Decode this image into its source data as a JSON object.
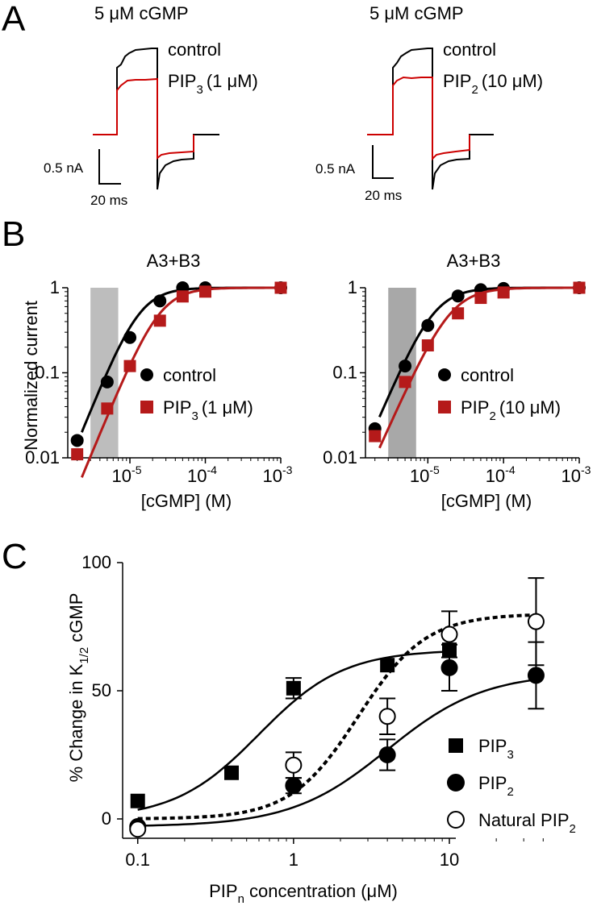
{
  "panel_letters": {
    "a": "A",
    "b": "B",
    "c": "C"
  },
  "panel_a": {
    "left": {
      "title": "5 μM cGMP",
      "label_control": "control",
      "label_drug": {
        "base": "PIP",
        "sub": "3",
        "conc": "(1 μM)"
      },
      "scale_current": "0.5 nA",
      "scale_time": "20 ms"
    },
    "right": {
      "title": "5 μM cGMP",
      "label_control": "control",
      "label_drug": {
        "base": "PIP",
        "sub": "2",
        "conc": "(10 μM)"
      },
      "scale_current": "0.5 nA",
      "scale_time": "20 ms"
    },
    "colors": {
      "control": "#000000",
      "drug": "#cc0000"
    }
  },
  "chart_data": [
    {
      "panel": "B-left",
      "type": "scatter",
      "title": "A3+B3",
      "ylabel": "Normalized current",
      "xlabel": "[cGMP] (M)",
      "xscale": "log",
      "yscale": "log",
      "xlim": [
        1.5e-06,
        0.001
      ],
      "ylim": [
        0.01,
        1
      ],
      "x_ticks": [
        {
          "base": "10",
          "exp": "-5",
          "v": 1e-05
        },
        {
          "base": "10",
          "exp": "-4",
          "v": 0.0001
        },
        {
          "base": "10",
          "exp": "-3",
          "v": 0.001
        }
      ],
      "y_ticks": [
        {
          "label": "1",
          "v": 1
        },
        {
          "label": "0.1",
          "v": 0.1
        },
        {
          "label": "0.01",
          "v": 0.01
        }
      ],
      "shaded_band": [
        3e-06,
        7e-06
      ],
      "series": [
        {
          "name": "control",
          "legend_base": "control",
          "color": "#000000",
          "marker": "circle",
          "x": [
            2e-06,
            5e-06,
            1e-05,
            2.5e-05,
            5e-05,
            0.0001,
            0.001
          ],
          "y": [
            0.016,
            0.078,
            0.26,
            0.7,
            1.0,
            1.0,
            1.0
          ],
          "fit": {
            "k": 1.35e-05,
            "n": 2.2
          }
        },
        {
          "name": "PIP3 (1 μM)",
          "legend_base": "PIP",
          "legend_sub": "3",
          "legend_conc": "(1 μM)",
          "color": "#b51a1a",
          "marker": "square",
          "x": [
            2e-06,
            5e-06,
            1e-05,
            2.5e-05,
            5e-05,
            0.0001,
            0.001
          ],
          "y": [
            0.011,
            0.038,
            0.12,
            0.41,
            0.79,
            0.9,
            1.0
          ],
          "fit": {
            "k": 2.5e-05,
            "n": 2.15
          }
        }
      ]
    },
    {
      "panel": "B-right",
      "type": "scatter",
      "title": "A3+B3",
      "ylabel": "",
      "xlabel": "[cGMP] (M)",
      "xscale": "log",
      "yscale": "log",
      "xlim": [
        1.5e-06,
        0.001
      ],
      "ylim": [
        0.01,
        1
      ],
      "x_ticks": [
        {
          "base": "10",
          "exp": "-5",
          "v": 1e-05
        },
        {
          "base": "10",
          "exp": "-4",
          "v": 0.0001
        },
        {
          "base": "10",
          "exp": "-3",
          "v": 0.001
        }
      ],
      "y_ticks": [
        {
          "label": "1",
          "v": 1
        },
        {
          "label": "0.1",
          "v": 0.1
        },
        {
          "label": "0.01",
          "v": 0.01
        }
      ],
      "shaded_band": [
        3e-06,
        7e-06
      ],
      "series": [
        {
          "name": "control",
          "legend_base": "control",
          "color": "#000000",
          "marker": "circle",
          "x": [
            2e-06,
            5e-06,
            1e-05,
            2.5e-05,
            5e-05,
            0.0001,
            0.001
          ],
          "y": [
            0.022,
            0.12,
            0.36,
            0.8,
            0.95,
            0.98,
            1.0
          ],
          "fit": {
            "k": 1.2e-05,
            "n": 2.1
          }
        },
        {
          "name": "PIP2 (10 μM)",
          "legend_base": "PIP",
          "legend_sub": "2",
          "legend_conc": "(10 μM)",
          "color": "#b51a1a",
          "marker": "square",
          "x": [
            2e-06,
            5e-06,
            1e-05,
            2.5e-05,
            5e-05,
            0.0001,
            0.001
          ],
          "y": [
            0.018,
            0.078,
            0.21,
            0.5,
            0.76,
            0.88,
            1.0
          ],
          "fit": {
            "k": 2e-05,
            "n": 2.0
          }
        }
      ]
    },
    {
      "panel": "C",
      "type": "scatter",
      "title": "",
      "ylabel": {
        "base": "% Change in  K",
        "sub": "1/2",
        "tail": " cGMP"
      },
      "xlabel": {
        "base": "PIP",
        "sub": "n",
        "tail": " concentration (μM)"
      },
      "xscale": "log",
      "xlim": [
        0.08,
        40
      ],
      "ylim": [
        -8,
        100
      ],
      "x_ticks": [
        {
          "label": "0.1",
          "v": 0.1
        },
        {
          "label": "1",
          "v": 1
        },
        {
          "label": "10",
          "v": 10
        }
      ],
      "y_ticks": [
        {
          "label": "0",
          "v": 0
        },
        {
          "label": "50",
          "v": 50
        },
        {
          "label": "100",
          "v": 100
        }
      ],
      "series": [
        {
          "name": "PIP3",
          "legend_base": "PIP",
          "legend_sub": "3",
          "marker": "square",
          "fill": "#000000",
          "line": "solid",
          "x": [
            0.1,
            0.4,
            1,
            4,
            10
          ],
          "y": [
            7,
            18,
            51,
            60,
            66
          ],
          "err": [
            0,
            0,
            4,
            0,
            0
          ],
          "fit": {
            "max": 66,
            "ec50": 0.6,
            "n": 1.6
          }
        },
        {
          "name": "PIP2",
          "legend_base": "PIP",
          "legend_sub": "2",
          "marker": "circle",
          "fill": "#000000",
          "line": "solid",
          "x": [
            0.1,
            1,
            4,
            10,
            36
          ],
          "y": [
            -3,
            13,
            25,
            59,
            56
          ],
          "err": [
            0,
            3,
            6,
            9,
            13
          ],
          "fit": {
            "max": 60,
            "ec50": 4.0,
            "n": 1.4
          }
        },
        {
          "name": "Natural PIP2",
          "legend_base": "Natural PIP",
          "legend_sub": "2",
          "marker": "circle",
          "fill": "#ffffff",
          "line": "dashed",
          "x": [
            0.1,
            1,
            4,
            10,
            36
          ],
          "y": [
            -4,
            21,
            40,
            72,
            77
          ],
          "err": [
            0,
            5,
            7,
            9,
            17
          ],
          "fit": {
            "max": 80,
            "ec50": 2.6,
            "n": 2.0
          }
        }
      ]
    }
  ]
}
